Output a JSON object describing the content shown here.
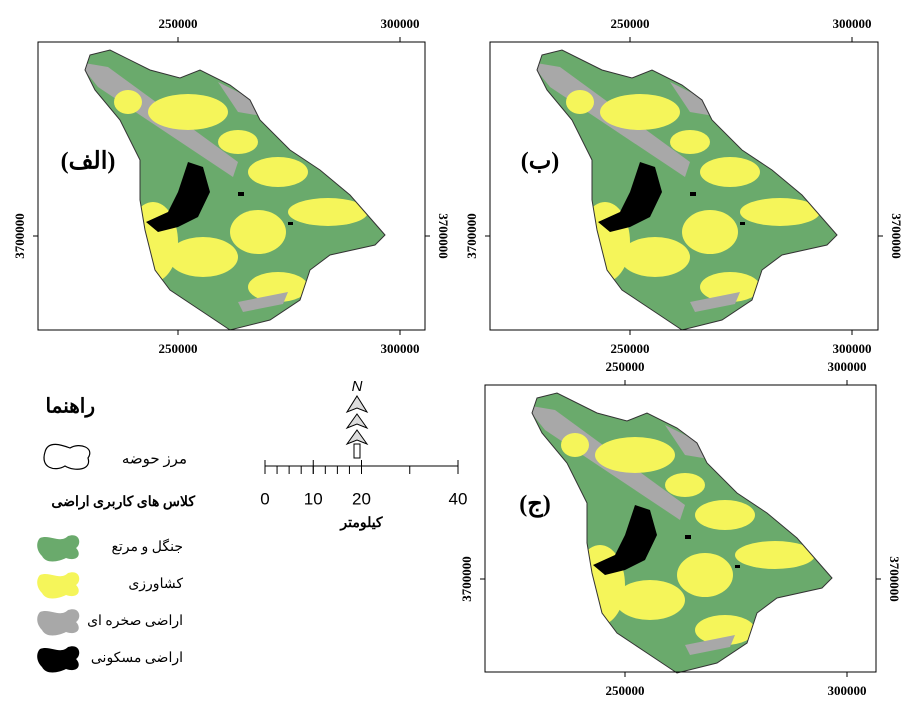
{
  "panels": [
    {
      "label": "(الف)",
      "top_ticks": [
        "250000",
        "300000"
      ],
      "bottom_ticks": [
        "250000",
        "300000"
      ],
      "left_tick": "3700000",
      "right_tick": "3700000"
    },
    {
      "label": "(ب)",
      "top_ticks": [
        "250000",
        "300000"
      ],
      "bottom_ticks": [
        "250000",
        "300000"
      ],
      "left_tick": "3700000",
      "right_tick": "3700000"
    },
    {
      "label": "(ج)",
      "top_ticks": [
        "250000",
        "300000"
      ],
      "bottom_ticks": [
        "250000",
        "300000"
      ],
      "left_tick": "3700000",
      "right_tick": "3700000"
    }
  ],
  "legend": {
    "title": "راهنما",
    "boundary": "مرز حوضه",
    "classes_title": "کلاس های کاربری اراضی",
    "classes": [
      {
        "name": "جنگل و مرتع",
        "color": "#6aaa6c"
      },
      {
        "name": "کشاورزی",
        "color": "#f5f55a"
      },
      {
        "name": "اراضی صخره ای",
        "color": "#a8a8a8"
      },
      {
        "name": "اراضی مسکونی",
        "color": "#000000"
      }
    ]
  },
  "scale_bar": {
    "ticks": [
      0,
      10,
      20,
      40
    ],
    "unit": "کیلومتر"
  },
  "north": "N"
}
